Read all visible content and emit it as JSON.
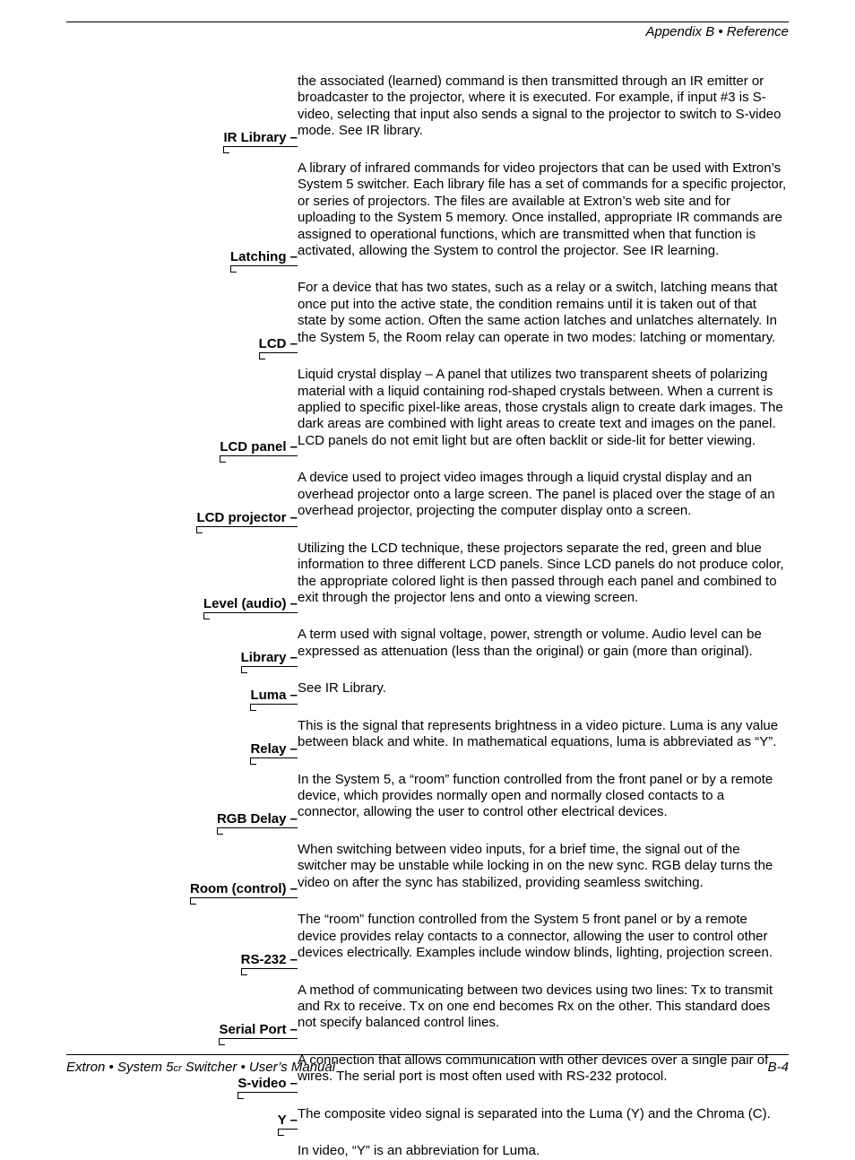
{
  "header": {
    "text": "Appendix B • Reference"
  },
  "continuation": "the associated (learned) command is then transmitted through an IR emitter or broadcaster to the projector, where it is executed. For example, if input #3 is S-video, selecting that input also sends a signal to the projector to switch to S-video mode. See IR library.",
  "entries": [
    {
      "term": "IR Library –",
      "def": "A library of infrared commands for video projectors that can be used with Extron’s System 5 switcher. Each library file has a set of commands for a specific projector, or series of projectors. The files are available at Extron’s web site and for uploading to the System 5 memory. Once installed, appropriate IR commands are assigned to operational functions, which are transmitted when that function is activated, allowing the System to control the projector. See IR learning."
    },
    {
      "term": "Latching –",
      "def": "For a device that has two states, such as a relay or a switch, latching means that once put into the active state, the condition remains until it is taken out of  that state by some action. Often the same action latches and unlatches alternately. In the System 5, the Room relay can operate in two modes: latching or momentary."
    },
    {
      "term": "LCD –",
      "def": "Liquid crystal display – A panel that utilizes two transparent sheets of polarizing material with a liquid containing rod-shaped crystals between. When a current is applied to specific pixel-like areas, those crystals align to create dark images. The dark areas are combined with light areas to create text and images on the panel. LCD panels do not emit light but are often backlit or side-lit for better viewing."
    },
    {
      "term": "LCD panel  –",
      "def": "A device used to project video images through a liquid crystal display and an overhead projector onto a large screen. The panel is placed over the stage of an overhead projector, projecting the computer display onto a screen."
    },
    {
      "term": "LCD projector –",
      "def": "Utilizing the LCD technique, these projectors separate the red, green and blue information to three different LCD panels. Since LCD panels do not produce color, the appropriate colored light is then passed through each panel and combined to exit through the projector lens and onto a viewing screen."
    },
    {
      "term": "Level (audio) –",
      "def": "A term used with signal voltage, power, strength or volume. Audio level can be expressed as attenuation (less than the original) or gain (more than original)."
    },
    {
      "term": "Library –",
      "def": "See IR Library."
    },
    {
      "term": "Luma –",
      "def": "This is the signal that represents brightness in a video picture. Luma is any value between black and white. In mathematical equations, luma is abbreviated as “Y”."
    },
    {
      "term": "Relay –",
      "def": "In the System 5, a “room” function controlled from the front panel or by a remote device, which provides normally open and normally closed contacts to a connector, allowing the user to control other electrical devices."
    },
    {
      "term": "RGB Delay –",
      "def": "When switching between video inputs, for a brief time, the signal out of the switcher may be unstable while locking in on the new sync. RGB delay turns the video on after the sync has stabilized, providing seamless switching."
    },
    {
      "term": "Room (control) –",
      "def": "The “room” function controlled from the System 5 front panel or by a remote device provides relay contacts to a connector, allowing the user to control other devices electrically. Examples include window blinds, lighting, projection screen."
    },
    {
      "term": "RS-232 –",
      "def": "A method of communicating between two devices using two lines: Tx to transmit and Rx to receive. Tx on one end becomes Rx on the other. This standard does not specify balanced control lines."
    },
    {
      "term": "Serial Port –",
      "def": "A connection that allows communication with other devices over a single pair of wires. The serial port is most often used with RS-232 protocol."
    },
    {
      "term": "S-video –",
      "def": "The composite video signal is separated into the Luma (Y) and the Chroma (C)."
    },
    {
      "term": "Y –",
      "def": "In video, “Y” is an abbreviation for Luma."
    }
  ],
  "footer": {
    "left_a": "Extron • System 5",
    "left_cr": "cr",
    "left_b": " Switcher • User’s Manual",
    "right": "B-4"
  }
}
